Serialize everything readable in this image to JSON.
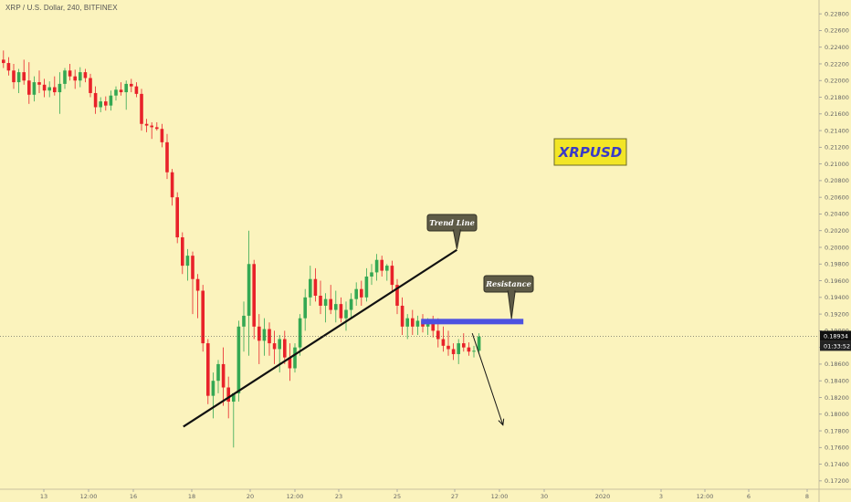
{
  "chart_data": {
    "type": "candlestick",
    "title": "XRP / U.S. Dollar, 240, BITFINEX",
    "symbol_label": "XRPUSD",
    "y_range": [
      0.171,
      0.229
    ],
    "y_ticks": [
      "0.22800",
      "0.22600",
      "0.22400",
      "0.22200",
      "0.22000",
      "0.21800",
      "0.21600",
      "0.21400",
      "0.21200",
      "0.21000",
      "0.20800",
      "0.20600",
      "0.20400",
      "0.20200",
      "0.20000",
      "0.19800",
      "0.19600",
      "0.19400",
      "0.19200",
      "0.19000",
      "0.18800",
      "0.18600",
      "0.18400",
      "0.18200",
      "0.18000",
      "0.17800",
      "0.17600",
      "0.17400",
      "0.17200"
    ],
    "x_ticks": [
      "13",
      "12:00",
      "16",
      "18",
      "20",
      "12:00",
      "23",
      "25",
      "27",
      "12:00",
      "30",
      "2020",
      "3",
      "12:00",
      "6",
      "8"
    ],
    "price_now": "0.18934",
    "countdown": "01:33:52",
    "candles": [
      [
        0.2225,
        0.2236,
        0.2215,
        0.2221
      ],
      [
        0.2221,
        0.2228,
        0.2206,
        0.2212
      ],
      [
        0.2212,
        0.222,
        0.219,
        0.2198
      ],
      [
        0.2198,
        0.2214,
        0.2185,
        0.221
      ],
      [
        0.221,
        0.2225,
        0.2195,
        0.22
      ],
      [
        0.22,
        0.2222,
        0.2172,
        0.2183
      ],
      [
        0.2183,
        0.2205,
        0.2175,
        0.2198
      ],
      [
        0.2198,
        0.2212,
        0.2185,
        0.2195
      ],
      [
        0.2195,
        0.2202,
        0.218,
        0.2188
      ],
      [
        0.2188,
        0.2199,
        0.218,
        0.2192
      ],
      [
        0.2192,
        0.2205,
        0.2182,
        0.2186
      ],
      [
        0.2186,
        0.221,
        0.216,
        0.2196
      ],
      [
        0.2196,
        0.2215,
        0.219,
        0.2212
      ],
      [
        0.2212,
        0.222,
        0.22,
        0.2205
      ],
      [
        0.2205,
        0.2213,
        0.219,
        0.22
      ],
      [
        0.22,
        0.2216,
        0.2192,
        0.221
      ],
      [
        0.221,
        0.2214,
        0.2198,
        0.2203
      ],
      [
        0.2203,
        0.2208,
        0.218,
        0.2185
      ],
      [
        0.2185,
        0.2193,
        0.216,
        0.2168
      ],
      [
        0.2168,
        0.218,
        0.2162,
        0.2175
      ],
      [
        0.2175,
        0.2181,
        0.2164,
        0.217
      ],
      [
        0.217,
        0.2188,
        0.2164,
        0.2182
      ],
      [
        0.2182,
        0.2193,
        0.2176,
        0.2189
      ],
      [
        0.2189,
        0.2198,
        0.2182,
        0.2186
      ],
      [
        0.2186,
        0.22,
        0.2165,
        0.2196
      ],
      [
        0.2196,
        0.2202,
        0.2186,
        0.2193
      ],
      [
        0.2193,
        0.2198,
        0.218,
        0.2184
      ],
      [
        0.2184,
        0.219,
        0.214,
        0.2148
      ],
      [
        0.2148,
        0.2154,
        0.2138,
        0.2146
      ],
      [
        0.2146,
        0.215,
        0.213,
        0.2144
      ],
      [
        0.2144,
        0.215,
        0.214,
        0.2142
      ],
      [
        0.2142,
        0.2148,
        0.212,
        0.2126
      ],
      [
        0.2126,
        0.2136,
        0.2082,
        0.209
      ],
      [
        0.209,
        0.2094,
        0.205,
        0.206
      ],
      [
        0.206,
        0.2066,
        0.2005,
        0.2012
      ],
      [
        0.2012,
        0.2018,
        0.1968,
        0.1978
      ],
      [
        0.1978,
        0.1998,
        0.196,
        0.199
      ],
      [
        0.199,
        0.1995,
        0.192,
        0.1962
      ],
      [
        0.1962,
        0.1968,
        0.1915,
        0.1948
      ],
      [
        0.1948,
        0.1955,
        0.1875,
        0.1885
      ],
      [
        0.1885,
        0.189,
        0.1812,
        0.1822
      ],
      [
        0.1822,
        0.185,
        0.1795,
        0.184
      ],
      [
        0.184,
        0.1865,
        0.1825,
        0.186
      ],
      [
        0.186,
        0.188,
        0.181,
        0.1832
      ],
      [
        0.1832,
        0.1845,
        0.1795,
        0.1815
      ],
      [
        0.1815,
        0.182,
        0.176,
        0.1825
      ],
      [
        0.1825,
        0.1912,
        0.1815,
        0.1905
      ],
      [
        0.1905,
        0.1935,
        0.1875,
        0.1918
      ],
      [
        0.1918,
        0.202,
        0.187,
        0.198
      ],
      [
        0.198,
        0.1985,
        0.189,
        0.1905
      ],
      [
        0.1905,
        0.192,
        0.186,
        0.1888
      ],
      [
        0.1888,
        0.1915,
        0.187,
        0.1902
      ],
      [
        0.1902,
        0.191,
        0.187,
        0.1885
      ],
      [
        0.1885,
        0.19,
        0.186,
        0.1878
      ],
      [
        0.1878,
        0.1895,
        0.185,
        0.189
      ],
      [
        0.189,
        0.19,
        0.186,
        0.1868
      ],
      [
        0.1868,
        0.1885,
        0.184,
        0.1855
      ],
      [
        0.1855,
        0.1885,
        0.185,
        0.188
      ],
      [
        0.188,
        0.192,
        0.187,
        0.1915
      ],
      [
        0.1915,
        0.195,
        0.19,
        0.194
      ],
      [
        0.194,
        0.1978,
        0.193,
        0.1962
      ],
      [
        0.1962,
        0.1975,
        0.1935,
        0.1942
      ],
      [
        0.1942,
        0.196,
        0.192,
        0.193
      ],
      [
        0.193,
        0.1945,
        0.191,
        0.1938
      ],
      [
        0.1938,
        0.1955,
        0.192,
        0.1925
      ],
      [
        0.1925,
        0.1948,
        0.191,
        0.1932
      ],
      [
        0.1932,
        0.194,
        0.191,
        0.1915
      ],
      [
        0.1915,
        0.1935,
        0.19,
        0.1925
      ],
      [
        0.1925,
        0.1945,
        0.1915,
        0.1938
      ],
      [
        0.1938,
        0.1958,
        0.193,
        0.195
      ],
      [
        0.195,
        0.196,
        0.193,
        0.194
      ],
      [
        0.194,
        0.1975,
        0.1935,
        0.1965
      ],
      [
        0.1965,
        0.198,
        0.1955,
        0.197
      ],
      [
        0.197,
        0.1992,
        0.196,
        0.1985
      ],
      [
        0.1985,
        0.199,
        0.1965,
        0.1972
      ],
      [
        0.1972,
        0.198,
        0.196,
        0.1978
      ],
      [
        0.1978,
        0.1984,
        0.1948,
        0.1955
      ],
      [
        0.1955,
        0.1962,
        0.192,
        0.193
      ],
      [
        0.193,
        0.194,
        0.1895,
        0.1905
      ],
      [
        0.1905,
        0.192,
        0.189,
        0.1915
      ],
      [
        0.1915,
        0.1925,
        0.1895,
        0.1905
      ],
      [
        0.1905,
        0.1918,
        0.1895,
        0.1912
      ],
      [
        0.1912,
        0.192,
        0.1898,
        0.1905
      ],
      [
        0.1905,
        0.1915,
        0.1895,
        0.191
      ],
      [
        0.191,
        0.1918,
        0.1892,
        0.19
      ],
      [
        0.19,
        0.1915,
        0.188,
        0.189
      ],
      [
        0.189,
        0.1905,
        0.1875,
        0.1882
      ],
      [
        0.1882,
        0.19,
        0.187,
        0.1878
      ],
      [
        0.1878,
        0.1885,
        0.1865,
        0.1872
      ],
      [
        0.1872,
        0.189,
        0.186,
        0.1885
      ],
      [
        0.1885,
        0.1897,
        0.1875,
        0.188
      ],
      [
        0.188,
        0.1886,
        0.187,
        0.1875
      ],
      [
        0.1875,
        0.1882,
        0.1868,
        0.1876
      ],
      [
        0.1876,
        0.1897,
        0.1872,
        0.1893
      ]
    ],
    "annotations": {
      "trend_line": {
        "label": "Trend Line",
        "from": [
          35.5,
          0.1785
        ],
        "to": [
          89,
          0.1997
        ]
      },
      "resistance": {
        "label": "Resistance",
        "price": 0.1911,
        "from_index": 82,
        "to_index": 102
      },
      "arrow": {
        "from": [
          92,
          0.1897
        ],
        "to": [
          98,
          0.1787
        ]
      }
    },
    "colors": {
      "background": "#fbf3bd",
      "up": "#34a853",
      "down": "#e8222a",
      "resistance": "#4c52e0",
      "trend": "#111111",
      "badge_bg": "#f2e526",
      "badge_text": "#3a3ac7",
      "callout_bg": "#5e5b47",
      "price_label_bg": "#111111"
    }
  }
}
